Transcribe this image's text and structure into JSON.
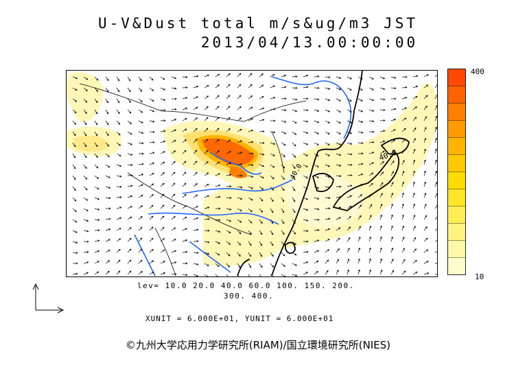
{
  "title": {
    "line1": "U-V&Dust total m/s&ug/m3 JST",
    "line2": "2013/04/13.00:00:00"
  },
  "colorbar": {
    "max_label": "400",
    "min_label": "10",
    "colors": [
      "#fffccc",
      "#fff7a8",
      "#fff280",
      "#ffed55",
      "#ffe62b",
      "#ffdc00",
      "#ffc800",
      "#ffb400",
      "#ff9b00",
      "#ff8000",
      "#ff6400",
      "#ff4800"
    ]
  },
  "levels": {
    "line1": "lev= 10.0 20.0 40.0 60.0 100. 150. 200.",
    "line2": "300. 400."
  },
  "units": "XUNIT = 6.000E+01, YUNIT = 6.000E+01",
  "contour_labels": [
    "40.0",
    "40.0"
  ],
  "copyright": "©九州大学応用力学研究所(RIAM)/国立環境研究所(NIES)",
  "colors": {
    "coast": "#000000",
    "river": "#1e64ff",
    "dust_low": "#fff7b8",
    "dust_high": "#ff5a00"
  }
}
